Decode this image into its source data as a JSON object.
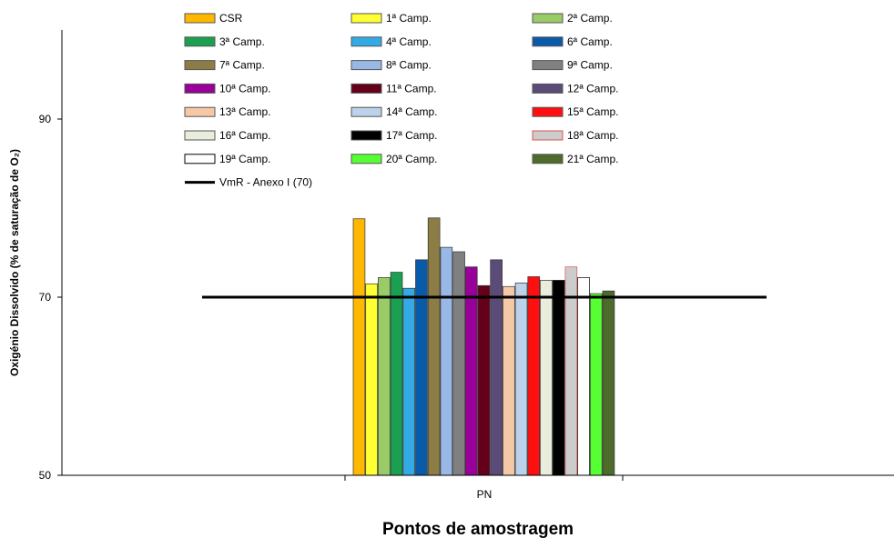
{
  "chart_data": {
    "type": "bar",
    "title": "",
    "xlabel": "Pontos de amostragem",
    "ylabel": "Oxigénio Dissolvido (% de saturação de O₂)",
    "ylim": [
      50,
      100
    ],
    "yticks": [
      50,
      70,
      90
    ],
    "categories": [
      "PN"
    ],
    "legend_position": "top",
    "series": [
      {
        "name": "CSR",
        "color": "#FFB800",
        "values": [
          78.8
        ]
      },
      {
        "name": "1ª Camp.",
        "color": "#FFFF33",
        "values": [
          71.5
        ]
      },
      {
        "name": "2ª Camp.",
        "color": "#99CC66",
        "values": [
          72.2
        ]
      },
      {
        "name": "3ª Camp.",
        "color": "#1AA050",
        "values": [
          72.8
        ]
      },
      {
        "name": "4ª Camp.",
        "color": "#33AAE6",
        "values": [
          71.0
        ]
      },
      {
        "name": "6ª Camp.",
        "color": "#0A5AAA",
        "values": [
          74.2
        ]
      },
      {
        "name": "7ª Camp.",
        "color": "#8C7D46",
        "values": [
          78.9
        ]
      },
      {
        "name": "8ª Camp.",
        "color": "#99B8E6",
        "values": [
          75.6
        ]
      },
      {
        "name": "9ª Camp.",
        "color": "#808080",
        "values": [
          75.1
        ]
      },
      {
        "name": "10ª Camp.",
        "color": "#990099",
        "values": [
          73.4
        ]
      },
      {
        "name": "11ª Camp.",
        "color": "#66001A",
        "values": [
          71.3
        ]
      },
      {
        "name": "12ª Camp.",
        "color": "#5A4B78",
        "values": [
          74.2
        ]
      },
      {
        "name": "13ª Camp.",
        "color": "#F5C8A8",
        "values": [
          71.2
        ]
      },
      {
        "name": "14ª Camp.",
        "color": "#BCD2EB",
        "values": [
          71.6
        ]
      },
      {
        "name": "15ª Camp.",
        "color": "#FF1010",
        "values": [
          72.3
        ]
      },
      {
        "name": "16ª Camp.",
        "color": "#E8EDDC",
        "values": [
          71.9
        ]
      },
      {
        "name": "17ª Camp.",
        "color": "#000000",
        "values": [
          71.9
        ]
      },
      {
        "name": "18ª Camp.",
        "color": "#CCCCCC",
        "edge": "#E05050",
        "values": [
          73.4
        ]
      },
      {
        "name": "19ª Camp.",
        "color": "#FFFFFF",
        "edge": "#000000",
        "values": [
          72.2
        ]
      },
      {
        "name": "20ª Camp.",
        "color": "#55FF33",
        "values": [
          70.4
        ]
      },
      {
        "name": "21ª Camp.",
        "color": "#4D6B2A",
        "values": [
          70.7
        ]
      }
    ],
    "reference_line": {
      "name": "VmR - Anexo I (70)",
      "value": 70,
      "color": "#000000"
    },
    "grid": false
  }
}
